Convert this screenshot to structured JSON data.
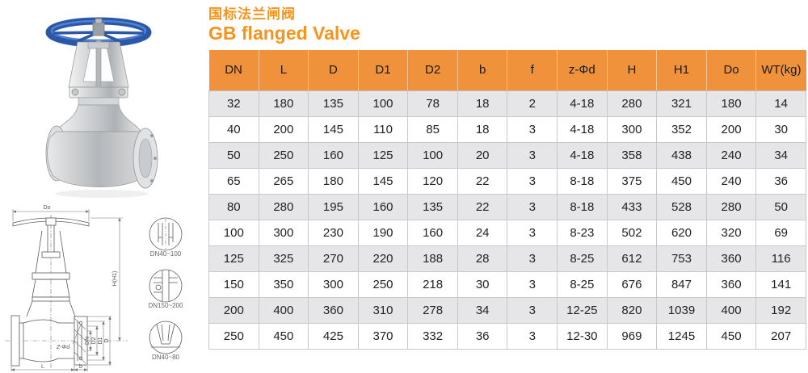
{
  "title": {
    "zh": "国标法兰闸阀",
    "en": "GB flanged Valve"
  },
  "colors": {
    "title_orange": "#F7941D",
    "header_orange": "#F0923C",
    "row_alt": "#E6E6E8",
    "grid_border": "#C9C9CB",
    "handwheel_blue": "#2A57A8"
  },
  "figures": {
    "drawing": {
      "labels": {
        "do": "Do",
        "h": "H(H1)",
        "dn": "DN",
        "d2": "D2",
        "d1": "D1",
        "d": "D",
        "z_phi_d": "Z-Φd",
        "b": "b",
        "l": "L"
      },
      "details": [
        {
          "label": "DN40~100"
        },
        {
          "label": "DN150~200"
        },
        {
          "label": "DN40~80"
        }
      ]
    }
  },
  "table": {
    "headers": [
      "DN",
      "L",
      "D",
      "D1",
      "D2",
      "b",
      "f",
      "z-Φd",
      "H",
      "H1",
      "Do",
      "WT(kg)"
    ],
    "rows": [
      [
        "32",
        "180",
        "135",
        "100",
        "78",
        "18",
        "2",
        "4-18",
        "280",
        "321",
        "180",
        "14"
      ],
      [
        "40",
        "200",
        "145",
        "110",
        "85",
        "18",
        "3",
        "4-18",
        "300",
        "352",
        "200",
        "30"
      ],
      [
        "50",
        "250",
        "160",
        "125",
        "100",
        "20",
        "3",
        "4-18",
        "358",
        "438",
        "240",
        "34"
      ],
      [
        "65",
        "265",
        "180",
        "145",
        "120",
        "22",
        "3",
        "8-18",
        "375",
        "450",
        "240",
        "36"
      ],
      [
        "80",
        "280",
        "195",
        "160",
        "135",
        "22",
        "3",
        "8-18",
        "433",
        "528",
        "280",
        "50"
      ],
      [
        "100",
        "300",
        "230",
        "190",
        "160",
        "24",
        "3",
        "8-23",
        "502",
        "620",
        "320",
        "69"
      ],
      [
        "125",
        "325",
        "270",
        "220",
        "188",
        "28",
        "3",
        "8-25",
        "612",
        "753",
        "360",
        "116"
      ],
      [
        "150",
        "350",
        "300",
        "250",
        "218",
        "30",
        "3",
        "8-25",
        "676",
        "847",
        "360",
        "141"
      ],
      [
        "200",
        "400",
        "360",
        "310",
        "278",
        "34",
        "3",
        "12-25",
        "820",
        "1039",
        "400",
        "192"
      ],
      [
        "250",
        "450",
        "425",
        "370",
        "332",
        "36",
        "3",
        "12-30",
        "969",
        "1245",
        "450",
        "207"
      ]
    ]
  }
}
